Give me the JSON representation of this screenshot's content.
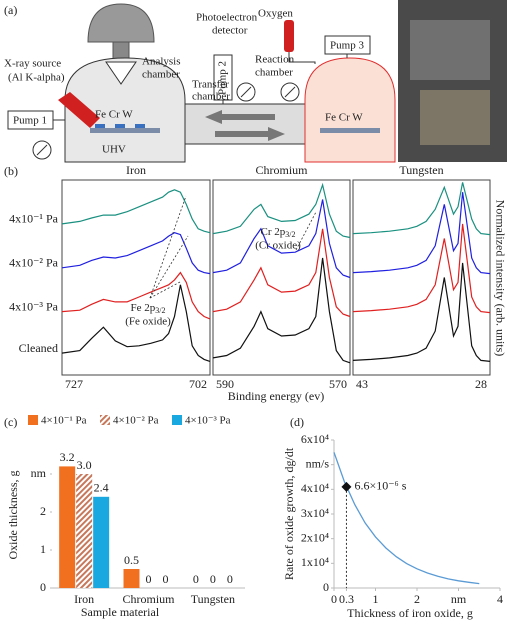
{
  "diagram": {
    "label": "(a)",
    "detector": [
      "Photoelectron",
      "detector"
    ],
    "oxygen": "Oxygen",
    "xray": [
      "X-ray source",
      "(Al K-alpha)"
    ],
    "analysis": [
      "Analysis",
      "chamber"
    ],
    "reaction": [
      "Reaction",
      "chamber"
    ],
    "transfer": [
      "Transfer",
      "chamber"
    ],
    "pump1": "Pump 1",
    "pump2": "Pump 2",
    "pump3": "Pump 3",
    "samples_left": "Fe Cr W",
    "samples_right": "Fe Cr W",
    "uhv": "UHV"
  },
  "chart_data": [
    {
      "type": "line",
      "label": "(b)",
      "xlabel": "Binding energy (ev)",
      "ylabel": "Normalized intensity (arb. units)",
      "ylim": [
        0,
        4
      ],
      "series": [
        {
          "name": "Cleaned",
          "color": "#111111"
        },
        {
          "name": "4x10⁻³ Pa",
          "color": "#e02020"
        },
        {
          "name": "4x10⁻² Pa",
          "color": "#2020e0"
        },
        {
          "name": "4x10⁻¹ Pa",
          "color": "#1a9080"
        }
      ],
      "panels": [
        {
          "title": "Iron",
          "xlim": [
            727,
            702
          ],
          "xticks": [
            727,
            702
          ],
          "x": [
            727,
            724,
            722,
            720,
            718,
            716,
            714,
            712,
            710,
            709,
            708,
            707,
            706,
            705,
            704,
            703,
            702
          ],
          "values": [
            [
              0.45,
              0.5,
              0.75,
              0.98,
              0.7,
              0.58,
              0.6,
              0.65,
              0.72,
              0.85,
              1.2,
              1.85,
              1.3,
              0.6,
              0.4,
              0.32,
              0.28
            ],
            [
              1.3,
              1.33,
              1.45,
              1.55,
              1.5,
              1.5,
              1.6,
              1.7,
              1.8,
              1.85,
              1.95,
              2.1,
              1.9,
              1.5,
              1.3,
              1.2,
              1.15
            ],
            [
              2.2,
              2.25,
              2.35,
              2.42,
              2.4,
              2.45,
              2.55,
              2.65,
              2.75,
              2.85,
              2.92,
              2.88,
              2.6,
              2.3,
              2.15,
              2.1,
              2.08
            ],
            [
              3.1,
              3.15,
              3.22,
              3.28,
              3.28,
              3.35,
              3.45,
              3.55,
              3.65,
              3.75,
              3.8,
              3.75,
              3.5,
              3.2,
              3.0,
              2.95,
              2.92
            ]
          ]
        },
        {
          "title": "Chromium",
          "xlim": [
            590,
            570
          ],
          "xticks": [
            590,
            570
          ],
          "x": [
            590,
            588,
            586,
            584,
            583,
            582,
            580,
            578,
            576,
            575,
            574,
            573,
            572,
            571,
            570
          ],
          "values": [
            [
              0.35,
              0.4,
              0.55,
              1.0,
              1.3,
              0.95,
              0.8,
              0.82,
              0.95,
              1.2,
              2.4,
              1.3,
              0.5,
              0.3,
              0.25
            ],
            [
              1.3,
              1.35,
              1.5,
              1.95,
              2.2,
              1.85,
              1.7,
              1.72,
              1.85,
              2.1,
              3.0,
              2.0,
              1.4,
              1.25,
              1.2
            ],
            [
              2.1,
              2.15,
              2.3,
              2.8,
              3.0,
              2.65,
              2.5,
              2.52,
              2.65,
              2.9,
              3.6,
              2.7,
              2.2,
              2.05,
              2.0
            ],
            [
              2.9,
              2.95,
              3.05,
              3.4,
              3.5,
              3.25,
              3.15,
              3.17,
              3.3,
              3.5,
              3.9,
              3.3,
              2.95,
              2.85,
              2.82
            ]
          ]
        },
        {
          "title": "Tungsten",
          "xlim": [
            43,
            28
          ],
          "xticks": [
            43,
            28
          ],
          "x": [
            43,
            41,
            39,
            37,
            36,
            35,
            34,
            33,
            32,
            31.5,
            31,
            30,
            29.5,
            29,
            28
          ],
          "values": [
            [
              0.3,
              0.32,
              0.35,
              0.4,
              0.45,
              0.55,
              0.9,
              2.0,
              0.8,
              1.0,
              2.3,
              0.6,
              0.4,
              0.3,
              0.28
            ],
            [
              1.3,
              1.32,
              1.35,
              1.4,
              1.45,
              1.55,
              1.85,
              2.8,
              1.75,
              1.9,
              3.1,
              1.6,
              1.4,
              1.3,
              1.28
            ],
            [
              2.1,
              2.12,
              2.15,
              2.2,
              2.25,
              2.35,
              2.65,
              3.5,
              2.55,
              2.7,
              3.75,
              2.4,
              2.2,
              2.1,
              2.08
            ],
            [
              2.9,
              2.92,
              2.95,
              3.0,
              3.05,
              3.15,
              3.4,
              3.85,
              3.3,
              3.45,
              3.95,
              3.2,
              3.0,
              2.9,
              2.88
            ]
          ]
        }
      ],
      "annotations": [
        {
          "text": "Fe 2p",
          "sub": "3/2",
          "note": "(Fe oxide)"
        },
        {
          "text": "Cr 2p",
          "sub": "3/2",
          "note": "(Cr oxide)"
        }
      ]
    },
    {
      "type": "bar",
      "label": "(c)",
      "xlabel": "Sample material",
      "ylabel": "Oxide thickness, g",
      "categories": [
        "Iron",
        "Chromium",
        "Tungsten"
      ],
      "ylim": [
        0,
        3.5
      ],
      "yticks": [
        0,
        1,
        2,
        {
          "value": 3,
          "label": "nm"
        }
      ],
      "series": [
        {
          "name": "4×10⁻¹ Pa",
          "color": "#f07020",
          "values": [
            3.2,
            0.5,
            0
          ],
          "value_labels": [
            "3.2",
            "0.5",
            "0"
          ]
        },
        {
          "name": "4×10⁻² Pa",
          "color": "#c8785a",
          "hatch": true,
          "values": [
            3.0,
            0,
            0
          ],
          "value_labels": [
            "3.0",
            "0",
            "0"
          ]
        },
        {
          "name": "4×10⁻³ Pa",
          "color": "#1aa8e0",
          "values": [
            2.4,
            0,
            0
          ],
          "value_labels": [
            "2.4",
            "0",
            "0"
          ]
        }
      ]
    },
    {
      "type": "line",
      "label": "(d)",
      "xlabel": "Thickness of iron oxide, g",
      "ylabel": "Rate of oxide growth, dg/dt",
      "color": "#5b9bd5",
      "xlim": [
        0,
        4
      ],
      "xticks": [
        0,
        0.3,
        1,
        2,
        {
          "value": 3,
          "label": "nm"
        },
        4
      ],
      "ylim": [
        0,
        60000
      ],
      "yticks": [
        0,
        {
          "value": 10000,
          "label": "1x10⁴"
        },
        {
          "value": 20000,
          "label": "2x10⁴"
        },
        {
          "value": 30000,
          "label": "3x10⁴"
        },
        {
          "value": 40000,
          "label": "4x10⁴"
        },
        {
          "value": 50000,
          "label": "nm/s"
        },
        {
          "value": 60000,
          "label": "6x10⁴"
        }
      ],
      "x": [
        0,
        0.25,
        0.5,
        0.75,
        1,
        1.25,
        1.5,
        1.75,
        2,
        2.25,
        2.5,
        2.75,
        3,
        3.25,
        3.5
      ],
      "values": [
        55000,
        43100,
        33800,
        26400,
        20700,
        16200,
        12700,
        9900,
        7800,
        6100,
        4800,
        3700,
        2900,
        2300,
        1800
      ],
      "marker": {
        "x": 0.3,
        "y": 41000,
        "label": "6.6×10⁻⁶ s"
      }
    }
  ]
}
